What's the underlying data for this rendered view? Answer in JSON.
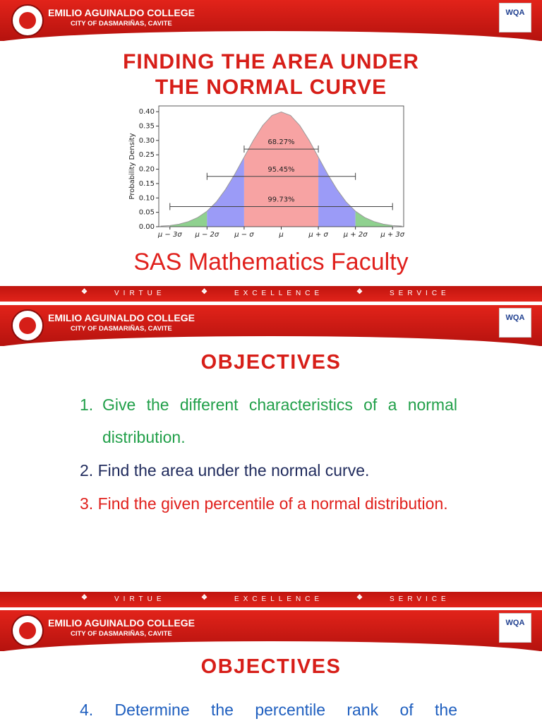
{
  "slides": [
    {
      "header": {
        "college": "EMILIO AGUINALDO COLLEGE",
        "city": "CITY OF DASMARIÑAS, CAVITE",
        "badge": "WQA"
      },
      "title": [
        "FINDING THE AREA UNDER",
        "THE NORMAL CURVE"
      ],
      "chart": {
        "type": "area",
        "ylabel": "Probability Density",
        "xlim": [
          -3.3,
          3.3
        ],
        "ylim": [
          0,
          0.42
        ],
        "xticks": [
          {
            "value": -3,
            "label": "μ − 3σ"
          },
          {
            "value": -2,
            "label": "μ − 2σ"
          },
          {
            "value": -1,
            "label": "μ − σ"
          },
          {
            "value": 0,
            "label": "μ"
          },
          {
            "value": 1,
            "label": "μ + σ"
          },
          {
            "value": 2,
            "label": "μ + 2σ"
          },
          {
            "value": 3,
            "label": "μ + 3σ"
          }
        ],
        "yticks": [
          {
            "value": 0,
            "label": "0.00"
          },
          {
            "value": 0.05,
            "label": "0.05"
          },
          {
            "value": 0.1,
            "label": "0.10"
          },
          {
            "value": 0.15,
            "label": "0.15"
          },
          {
            "value": 0.2,
            "label": "0.20"
          },
          {
            "value": 0.25,
            "label": "0.25"
          },
          {
            "value": 0.3,
            "label": "0.30"
          },
          {
            "value": 0.35,
            "label": "0.35"
          },
          {
            "value": 0.4,
            "label": "0.40"
          }
        ],
        "curve": {
          "color": "#9a9a9a",
          "x": [
            -3.25,
            -3,
            -2.75,
            -2.5,
            -2.25,
            -2,
            -1.75,
            -1.5,
            -1.25,
            -1,
            -0.75,
            -0.5,
            -0.25,
            0,
            0.25,
            0.5,
            0.75,
            1,
            1.25,
            1.5,
            1.75,
            2,
            2.25,
            2.5,
            2.75,
            3,
            3.25
          ],
          "y": [
            0.002,
            0.004,
            0.009,
            0.018,
            0.032,
            0.054,
            0.086,
            0.13,
            0.183,
            0.242,
            0.301,
            0.352,
            0.387,
            0.399,
            0.387,
            0.352,
            0.301,
            0.242,
            0.183,
            0.13,
            0.086,
            0.054,
            0.032,
            0.018,
            0.009,
            0.004,
            0.002
          ]
        },
        "bands": [
          {
            "from": -3,
            "to": -2,
            "color": "#8fd18f"
          },
          {
            "from": -2,
            "to": -1,
            "color": "#9b9bf7"
          },
          {
            "from": -1,
            "to": 1,
            "color": "#f7a3a3"
          },
          {
            "from": 1,
            "to": 2,
            "color": "#9b9bf7"
          },
          {
            "from": 2,
            "to": 3,
            "color": "#8fd18f"
          }
        ],
        "intervals": [
          {
            "label": "68.27%",
            "y": 0.27,
            "x": [
              -1,
              1
            ]
          },
          {
            "label": "95.45%",
            "y": 0.175,
            "x": [
              -2,
              2
            ]
          },
          {
            "label": "99.73%",
            "y": 0.07,
            "x": [
              -3,
              3
            ]
          }
        ]
      },
      "subtitle": "SAS Mathematics Faculty",
      "footer": [
        "VIRTUE",
        "EXCELLENCE",
        "SERVICE"
      ]
    },
    {
      "header": {
        "college": "EMILIO AGUINALDO COLLEGE",
        "city": "CITY OF DASMARIÑAS, CAVITE",
        "badge": "WQA"
      },
      "heading": "OBJECTIVES",
      "items": [
        {
          "number": "1.",
          "text": "Give the different characteristics of a normal distribution.",
          "color": "#22a04a"
        },
        {
          "number": "2.",
          "text": "Find the area under the normal curve.",
          "color": "#1f2a5c"
        },
        {
          "number": "3.",
          "text": "Find the given percentile of a normal distribution.",
          "color": "#e0201c"
        }
      ],
      "footer": [
        "VIRTUE",
        "EXCELLENCE",
        "SERVICE"
      ]
    },
    {
      "header": {
        "college": "EMILIO AGUINALDO COLLEGE",
        "city": "CITY OF DASMARIÑAS, CAVITE",
        "badge": "WQA"
      },
      "heading": "OBJECTIVES",
      "items": [
        {
          "number": "4.",
          "text": "Determine the percentile rank of the",
          "color": "#1f5fbf"
        }
      ]
    }
  ]
}
